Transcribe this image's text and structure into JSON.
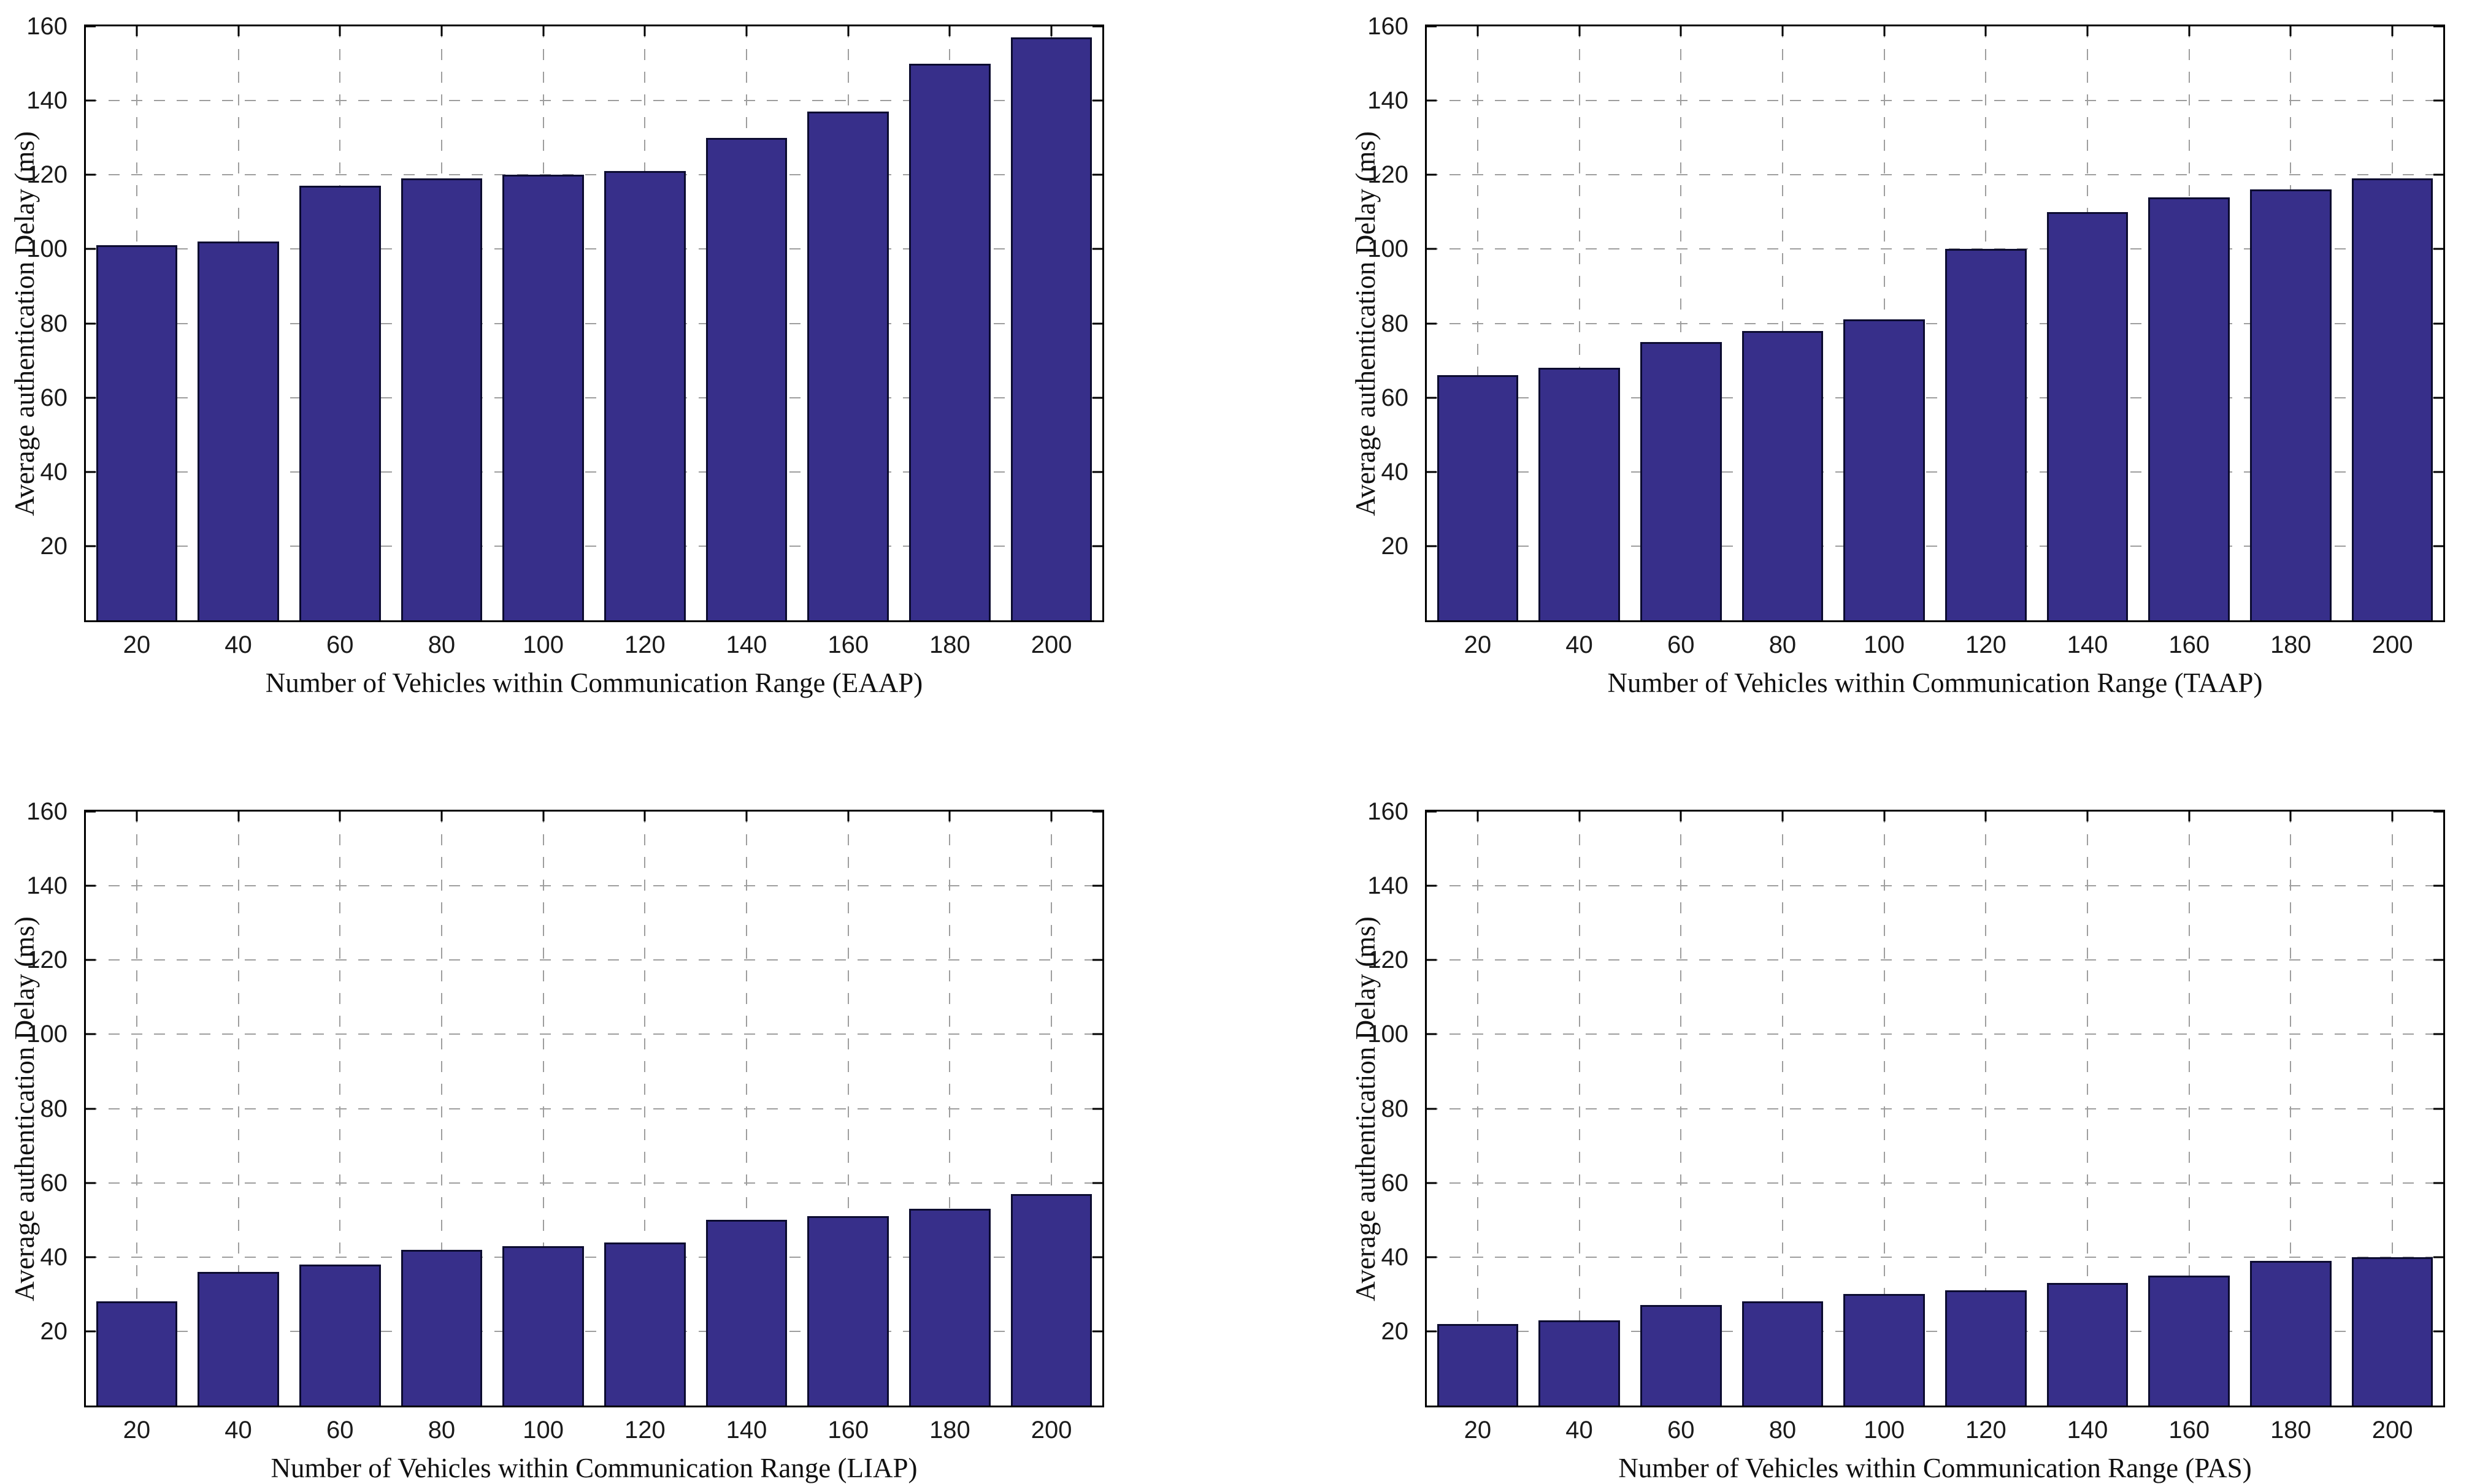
{
  "figure": {
    "background": "#ffffff",
    "bar_color": "#372F8A",
    "bar_edge_color": "#0C0C30",
    "grid_color": "#9e9e9e",
    "axis_color": "#000000"
  },
  "axes_meta": {
    "yticks": [
      20,
      40,
      60,
      80,
      100,
      120,
      140,
      160
    ],
    "xlim": [
      10,
      210
    ],
    "bar_width_units": 16,
    "grid": "on",
    "grid_style": "dashed"
  },
  "chart_data": [
    {
      "type": "bar",
      "title": "",
      "xlabel": "Number of Vehicles within Communication Range (EAAP)",
      "ylabel": "Average authentication Delay (ms)",
      "categories": [
        20,
        40,
        60,
        80,
        100,
        120,
        140,
        160,
        180,
        200
      ],
      "values": [
        101,
        102,
        117,
        119,
        120,
        121,
        130,
        137,
        150,
        157
      ],
      "ylim": [
        0,
        160
      ],
      "legend": "none"
    },
    {
      "type": "bar",
      "title": "",
      "xlabel": "Number of Vehicles within Communication Range (TAAP)",
      "ylabel": "Average authentication Delay (ms)",
      "categories": [
        20,
        40,
        60,
        80,
        100,
        120,
        140,
        160,
        180,
        200
      ],
      "values": [
        66,
        68,
        75,
        78,
        81,
        100,
        110,
        114,
        116,
        119
      ],
      "ylim": [
        0,
        160
      ],
      "legend": "none"
    },
    {
      "type": "bar",
      "title": "",
      "xlabel": "Number of Vehicles within Communication Range (LIAP)",
      "ylabel": "Average authentication Delay (ms)",
      "categories": [
        20,
        40,
        60,
        80,
        100,
        120,
        140,
        160,
        180,
        200
      ],
      "values": [
        28,
        36,
        38,
        42,
        43,
        44,
        50,
        51,
        53,
        57
      ],
      "ylim": [
        0,
        160
      ],
      "legend": "none"
    },
    {
      "type": "bar",
      "title": "",
      "xlabel": "Number of Vehicles within Communication Range (PAS)",
      "ylabel": "Average authentication Delay (ms)",
      "categories": [
        20,
        40,
        60,
        80,
        100,
        120,
        140,
        160,
        180,
        200
      ],
      "values": [
        22,
        23,
        27,
        28,
        30,
        31,
        33,
        35,
        39,
        40
      ],
      "ylim": [
        0,
        160
      ],
      "legend": "none"
    }
  ]
}
